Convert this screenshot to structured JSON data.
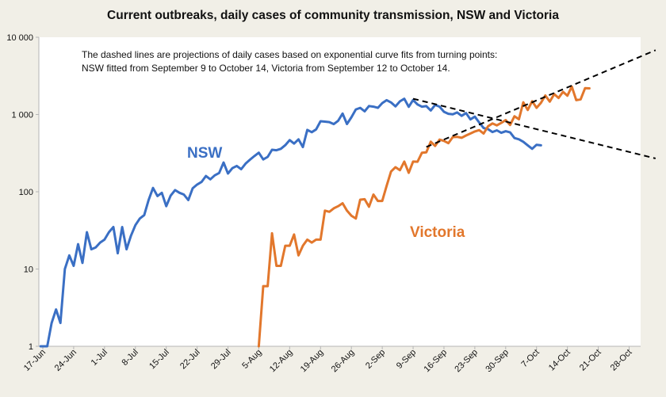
{
  "chart_data": {
    "type": "line",
    "title": "Current outbreaks, daily cases of community transmission, NSW and Victoria",
    "annotation_lines": [
      "The dashed lines are projections of daily cases based on exponential curve fits from turning points:",
      "NSW fitted from September 9 to October 14, Victoria from September 12 to October 14."
    ],
    "y_scale": "log",
    "ylim": [
      1,
      10000
    ],
    "y_ticks": [
      1,
      10,
      100,
      1000,
      10000
    ],
    "y_tick_labels": [
      "1",
      "10",
      "100",
      "1 000",
      "10 000"
    ],
    "x_tick_labels": [
      "17-Jun",
      "24-Jun",
      "1-Jul",
      "8-Jul",
      "15-Jul",
      "22-Jul",
      "29-Jul",
      "5-Aug",
      "12-Aug",
      "19-Aug",
      "26-Aug",
      "2-Sep",
      "9-Sep",
      "16-Sep",
      "23-Sep",
      "30-Sep",
      "7-Oct",
      "14-Oct",
      "21-Oct",
      "28-Oct"
    ],
    "x_start": "17-Jun",
    "x_end_day": 139,
    "x_unit": "days since 17-Jun",
    "colors": {
      "nsw": "#3a6fc4",
      "victoria": "#e2772c",
      "projection": "#000000"
    },
    "series": [
      {
        "name": "NSW",
        "color": "#3a6fc4",
        "start_day": 0,
        "values": [
          1,
          1,
          2,
          3,
          2,
          10,
          15,
          11,
          21,
          12,
          30,
          18,
          19,
          22,
          24,
          30,
          35,
          16,
          35,
          18,
          27,
          37,
          45,
          50,
          78,
          112,
          88,
          97,
          65,
          89,
          105,
          97,
          92,
          78,
          111,
          124,
          134,
          160,
          145,
          163,
          175,
          239,
          172,
          202,
          216,
          196,
          232,
          260,
          290,
          320,
          262,
          283,
          350,
          345,
          360,
          401,
          466,
          420,
          478,
          379,
          633,
          590,
          642,
          818,
          808,
          798,
          752,
          830,
          1029,
          753,
          920,
          1163,
          1218,
          1100,
          1288,
          1262,
          1220,
          1405,
          1533,
          1431,
          1274,
          1480,
          1599,
          1257,
          1542,
          1351,
          1260,
          1284,
          1127,
          1331,
          1262,
          1083,
          1022,
          1007,
          1063,
          961,
          1043,
          864,
          938,
          787,
          667,
          646,
          594,
          623,
          580,
          608,
          587,
          496,
          477,
          444,
          399,
          360,
          406,
          399
        ]
      },
      {
        "name": "Victoria",
        "color": "#e2772c",
        "start_day": 49,
        "values": [
          1,
          6,
          6,
          29,
          11,
          11,
          20,
          20,
          28,
          15,
          20,
          24,
          22,
          24,
          24,
          57,
          55,
          61,
          65,
          71,
          57,
          49,
          45,
          79,
          80,
          64,
          92,
          76,
          76,
          120,
          183,
          208,
          190,
          246,
          176,
          246,
          245,
          320,
          324,
          445,
          392,
          473,
          455,
          425,
          510,
          514,
          500,
          535,
          568,
          603,
          628,
          567,
          705,
          766,
          723,
          779,
          847,
          733,
          950,
          867,
          1438,
          1143,
          1488,
          1220,
          1420,
          1763,
          1466,
          1838,
          1638,
          1965,
          1749,
          2297,
          1534,
          1571,
          2189,
          2179
        ]
      },
      {
        "name": "NSW projection",
        "style": "dashed",
        "start_day": 84,
        "start_value": 1600,
        "end_day": 139,
        "end_value": 270
      },
      {
        "name": "Victoria projection",
        "style": "dashed",
        "start_day": 87,
        "start_value": 380,
        "end_day": 139,
        "end_value": 6800
      }
    ],
    "series_labels": [
      "NSW",
      "Victoria"
    ],
    "grid": false,
    "legend": "none"
  }
}
